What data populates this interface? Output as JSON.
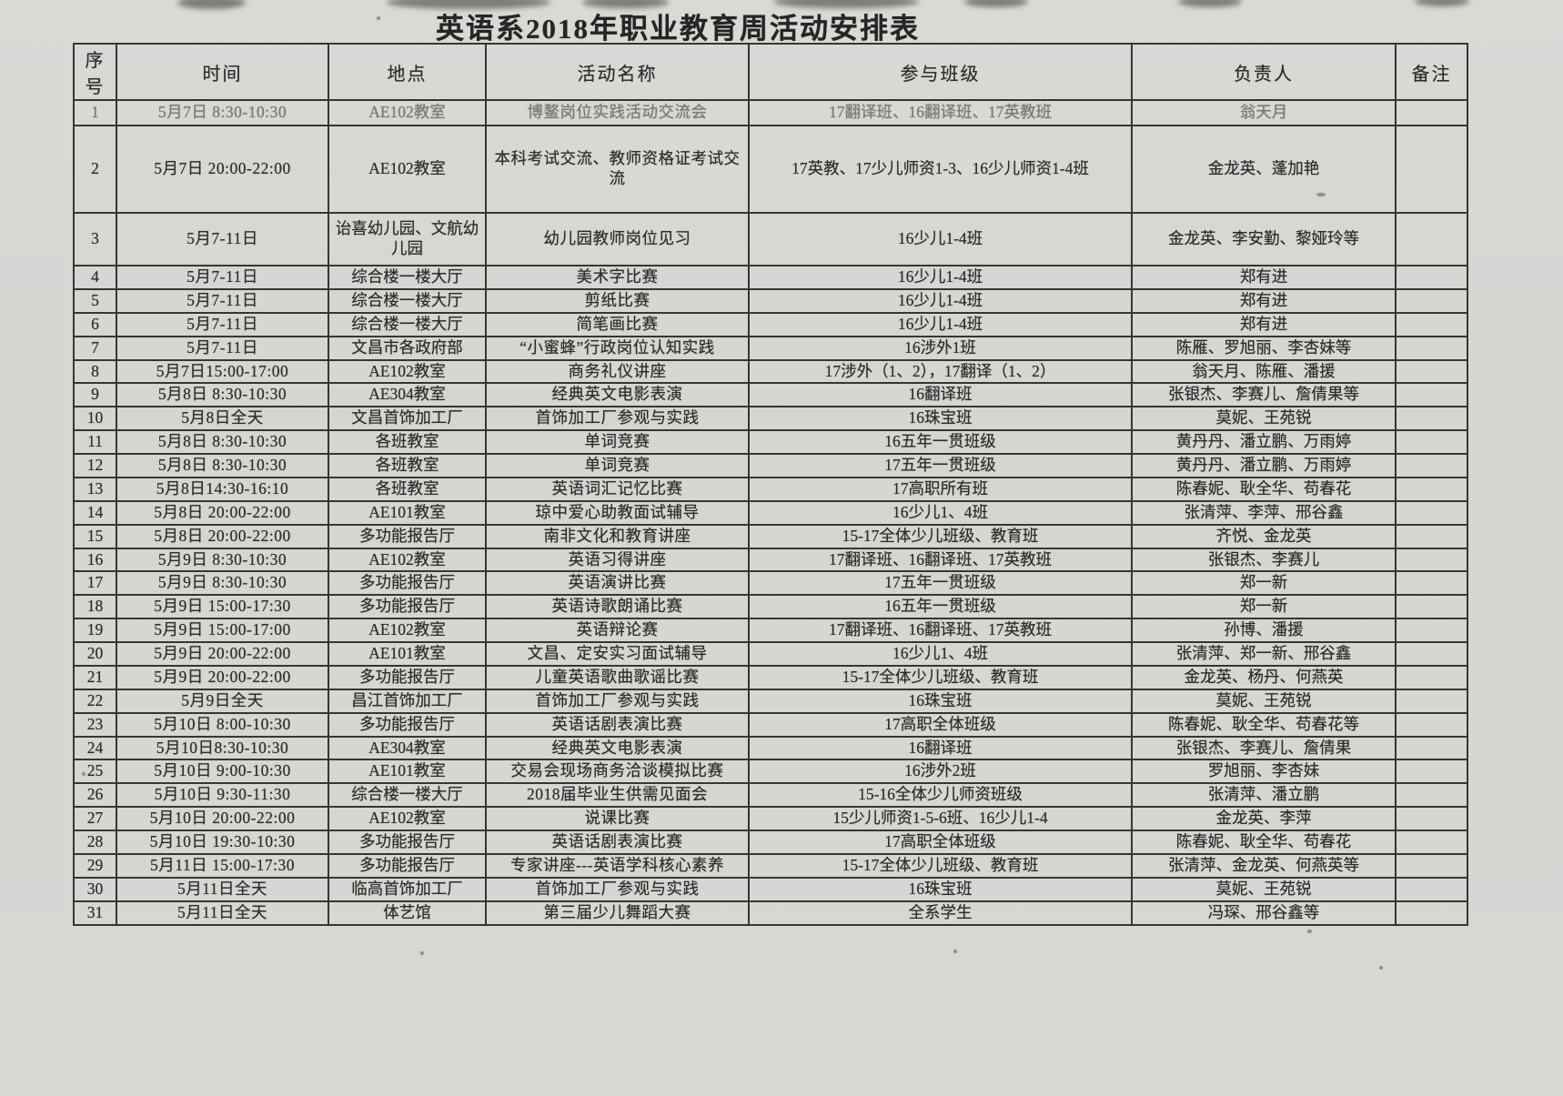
{
  "page": {
    "title": "英语系2018年职业教育周活动安排表"
  },
  "colors": {
    "paper": "#d6d6d3",
    "ink": "#2e2d2b",
    "grid_line": "#38362f",
    "faded_row_ink": "#7b7a73"
  },
  "table": {
    "columns": [
      "序号",
      "时间",
      "地点",
      "活动名称",
      "参与班级",
      "负责人",
      "备注"
    ],
    "rows": [
      {
        "seq": "1",
        "time": "5月7日 8:30-10:30",
        "place": "AE102教室",
        "activity": "博鳌岗位实践活动交流会",
        "classes": "17翻译班、16翻译班、17英教班",
        "leader": "翁天月",
        "note": ""
      },
      {
        "seq": "2",
        "time": "5月7日 20:00-22:00",
        "place": "AE102教室",
        "activity": "本科考试交流、教师资格证考试交流",
        "classes": "17英教、17少儿师资1-3、16少儿师资1-4班",
        "leader": "金龙英、蓬加艳",
        "note": ""
      },
      {
        "seq": "3",
        "time": "5月7-11日",
        "place": "诒喜幼儿园、文航幼儿园",
        "activity": "幼儿园教师岗位见习",
        "classes": "16少儿1-4班",
        "leader": "金龙英、李安勤、黎娅玲等",
        "note": ""
      },
      {
        "seq": "4",
        "time": "5月7-11日",
        "place": "综合楼一楼大厅",
        "activity": "美术字比赛",
        "classes": "16少儿1-4班",
        "leader": "郑有进",
        "note": ""
      },
      {
        "seq": "5",
        "time": "5月7-11日",
        "place": "综合楼一楼大厅",
        "activity": "剪纸比赛",
        "classes": "16少儿1-4班",
        "leader": "郑有进",
        "note": ""
      },
      {
        "seq": "6",
        "time": "5月7-11日",
        "place": "综合楼一楼大厅",
        "activity": "简笔画比赛",
        "classes": "16少儿1-4班",
        "leader": "郑有进",
        "note": ""
      },
      {
        "seq": "7",
        "time": "5月7-11日",
        "place": "文昌市各政府部",
        "activity": "“小蜜蜂”行政岗位认知实践",
        "classes": "16涉外1班",
        "leader": "陈雁、罗旭丽、李杏妹等",
        "note": ""
      },
      {
        "seq": "8",
        "time": "5月7日15:00-17:00",
        "place": "AE102教室",
        "activity": "商务礼仪讲座",
        "classes": "17涉外（1、2），17翻译（1、2）",
        "leader": "翁天月、陈雁、潘援",
        "note": ""
      },
      {
        "seq": "9",
        "time": "5月8日 8:30-10:30",
        "place": "AE304教室",
        "activity": "经典英文电影表演",
        "classes": "16翻译班",
        "leader": "张银杰、李赛儿、詹倩果等",
        "note": ""
      },
      {
        "seq": "10",
        "time": "5月8日全天",
        "place": "文昌首饰加工厂",
        "activity": "首饰加工厂参观与实践",
        "classes": "16珠宝班",
        "leader": "莫妮、王苑锐",
        "note": ""
      },
      {
        "seq": "11",
        "time": "5月8日 8:30-10:30",
        "place": "各班教室",
        "activity": "单词竞赛",
        "classes": "16五年一贯班级",
        "leader": "黄丹丹、潘立鹏、万雨婷",
        "note": ""
      },
      {
        "seq": "12",
        "time": "5月8日 8:30-10:30",
        "place": "各班教室",
        "activity": "单词竞赛",
        "classes": "17五年一贯班级",
        "leader": "黄丹丹、潘立鹏、万雨婷",
        "note": ""
      },
      {
        "seq": "13",
        "time": "5月8日14:30-16:10",
        "place": "各班教室",
        "activity": "英语词汇记忆比赛",
        "classes": "17高职所有班",
        "leader": "陈春妮、耿全华、苟春花",
        "note": ""
      },
      {
        "seq": "14",
        "time": "5月8日 20:00-22:00",
        "place": "AE101教室",
        "activity": "琼中爱心助教面试辅导",
        "classes": "16少儿1、4班",
        "leader": "张清萍、李萍、邢谷鑫",
        "note": ""
      },
      {
        "seq": "15",
        "time": "5月8日 20:00-22:00",
        "place": "多功能报告厅",
        "activity": "南非文化和教育讲座",
        "classes": "15-17全体少儿班级、教育班",
        "leader": "齐悦、金龙英",
        "note": ""
      },
      {
        "seq": "16",
        "time": "5月9日 8:30-10:30",
        "place": "AE102教室",
        "activity": "英语习得讲座",
        "classes": "17翻译班、16翻译班、17英教班",
        "leader": "张银杰、李赛儿",
        "note": ""
      },
      {
        "seq": "17",
        "time": "5月9日 8:30-10:30",
        "place": "多功能报告厅",
        "activity": "英语演讲比赛",
        "classes": "17五年一贯班级",
        "leader": "郑一新",
        "note": ""
      },
      {
        "seq": "18",
        "time": "5月9日 15:00-17:30",
        "place": "多功能报告厅",
        "activity": "英语诗歌朗诵比赛",
        "classes": "16五年一贯班级",
        "leader": "郑一新",
        "note": ""
      },
      {
        "seq": "19",
        "time": "5月9日 15:00-17:00",
        "place": "AE102教室",
        "activity": "英语辩论赛",
        "classes": "17翻译班、16翻译班、17英教班",
        "leader": "孙博、潘援",
        "note": ""
      },
      {
        "seq": "20",
        "time": "5月9日 20:00-22:00",
        "place": "AE101教室",
        "activity": "文昌、定安实习面试辅导",
        "classes": "16少儿1、4班",
        "leader": "张清萍、郑一新、邢谷鑫",
        "note": ""
      },
      {
        "seq": "21",
        "time": "5月9日 20:00-22:00",
        "place": "多功能报告厅",
        "activity": "儿童英语歌曲歌谣比赛",
        "classes": "15-17全体少儿班级、教育班",
        "leader": "金龙英、杨丹、何燕英",
        "note": ""
      },
      {
        "seq": "22",
        "time": "5月9日全天",
        "place": "昌江首饰加工厂",
        "activity": "首饰加工厂参观与实践",
        "classes": "16珠宝班",
        "leader": "莫妮、王苑锐",
        "note": ""
      },
      {
        "seq": "23",
        "time": "5月10日 8:00-10:30",
        "place": "多功能报告厅",
        "activity": "英语话剧表演比赛",
        "classes": "17高职全体班级",
        "leader": "陈春妮、耿全华、苟春花等",
        "note": ""
      },
      {
        "seq": "24",
        "time": "5月10日8:30-10:30",
        "place": "AE304教室",
        "activity": "经典英文电影表演",
        "classes": "16翻译班",
        "leader": "张银杰、李赛儿、詹倩果",
        "note": ""
      },
      {
        "seq": "25",
        "time": "5月10日 9:00-10:30",
        "place": "AE101教室",
        "activity": "交易会现场商务洽谈模拟比赛",
        "classes": "16涉外2班",
        "leader": "罗旭丽、李杏妹",
        "note": ""
      },
      {
        "seq": "26",
        "time": "5月10日 9:30-11:30",
        "place": "综合楼一楼大厅",
        "activity": "2018届毕业生供需见面会",
        "classes": "15-16全体少儿师资班级",
        "leader": "张清萍、潘立鹏",
        "note": ""
      },
      {
        "seq": "27",
        "time": "5月10日 20:00-22:00",
        "place": "AE102教室",
        "activity": "说课比赛",
        "classes": "15少儿师资1-5-6班、16少儿1-4",
        "leader": "金龙英、李萍",
        "note": ""
      },
      {
        "seq": "28",
        "time": "5月10日 19:30-10:30",
        "place": "多功能报告厅",
        "activity": "英语话剧表演比赛",
        "classes": "17高职全体班级",
        "leader": "陈春妮、耿全华、苟春花",
        "note": ""
      },
      {
        "seq": "29",
        "time": "5月11日 15:00-17:30",
        "place": "多功能报告厅",
        "activity": "专家讲座---英语学科核心素养",
        "classes": "15-17全体少儿班级、教育班",
        "leader": "张清萍、金龙英、何燕英等",
        "note": ""
      },
      {
        "seq": "30",
        "time": "5月11日全天",
        "place": "临高首饰加工厂",
        "activity": "首饰加工厂参观与实践",
        "classes": "16珠宝班",
        "leader": "莫妮、王苑锐",
        "note": ""
      },
      {
        "seq": "31",
        "time": "5月11日全天",
        "place": "体艺馆",
        "activity": "第三届少儿舞蹈大赛",
        "classes": "全系学生",
        "leader": "冯琛、邢谷鑫等",
        "note": ""
      }
    ]
  }
}
